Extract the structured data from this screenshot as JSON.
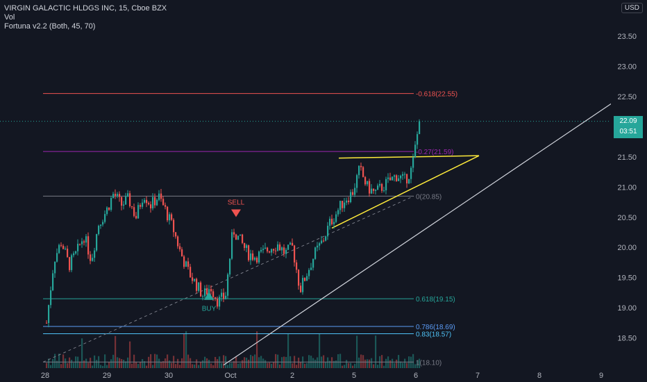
{
  "header": {
    "symbol_line": "VIRGIN GALACTIC HLDGS INC, 15, Cboe BZX",
    "vol_line": "Vol",
    "indicator_line": "Fortuna v2.2 (Both, 45, 70)",
    "currency": "USD"
  },
  "last_price": {
    "value": "22.09",
    "countdown": "03:51",
    "color": "#26a69a"
  },
  "colors": {
    "background": "#131722",
    "up": "#26a69a",
    "down": "#ef5350"
  },
  "chart_data": {
    "type": "candlestick",
    "title": "VIRGIN GALACTIC HLDGS INC, 15, Cboe BZX",
    "x_tick_labels": [
      "28",
      "29",
      "30",
      "Oct",
      "2",
      "5",
      "6",
      "7",
      "8",
      "9"
    ],
    "y_ticks": [
      "18.50",
      "19.00",
      "19.50",
      "20.00",
      "20.50",
      "21.00",
      "21.50",
      "22.00",
      "22.50",
      "23.00",
      "23.50"
    ],
    "ylim": [
      18.0,
      24.1
    ],
    "grid": false,
    "series_close": [
      18.75,
      19.8,
      20.1,
      19.7,
      19.9,
      20.2,
      19.8,
      20.4,
      20.6,
      20.9,
      20.7,
      20.8,
      20.5,
      20.9,
      20.7,
      20.85,
      20.6,
      20.3,
      19.9,
      19.6,
      19.4,
      19.2,
      19.35,
      19.1,
      19.2,
      20.3,
      20.1,
      19.9,
      19.85,
      19.9,
      20.0,
      20.05,
      19.9,
      20.0,
      19.3,
      19.6,
      19.9,
      20.1,
      20.4,
      20.6,
      20.8,
      20.9,
      21.3,
      21.0,
      20.9,
      21.0,
      21.1,
      21.2,
      21.1,
      21.3,
      22.09
    ],
    "fib_levels": [
      {
        "label": "-0.618(22.55)",
        "value": 22.55,
        "color": "#ef5350"
      },
      {
        "label": "-0.27(21.59)",
        "value": 21.59,
        "color": "#9c27b0"
      },
      {
        "label": "0(20.85)",
        "value": 20.85,
        "color": "#787b86"
      },
      {
        "label": "0.618(19.15)",
        "value": 19.15,
        "color": "#26a69a"
      },
      {
        "label": "0.786(18.69)",
        "value": 18.69,
        "color": "#5b9cf6"
      },
      {
        "label": "0.83(18.57)",
        "value": 18.57,
        "color": "#4fc3f7"
      },
      {
        "label": "1(18.10)",
        "value": 18.1,
        "color": "#787b86"
      }
    ],
    "signals": [
      {
        "label": "SELL",
        "type": "sell",
        "value": 20.55
      },
      {
        "label": "BUY",
        "type": "buy",
        "value": 19.2
      }
    ]
  }
}
